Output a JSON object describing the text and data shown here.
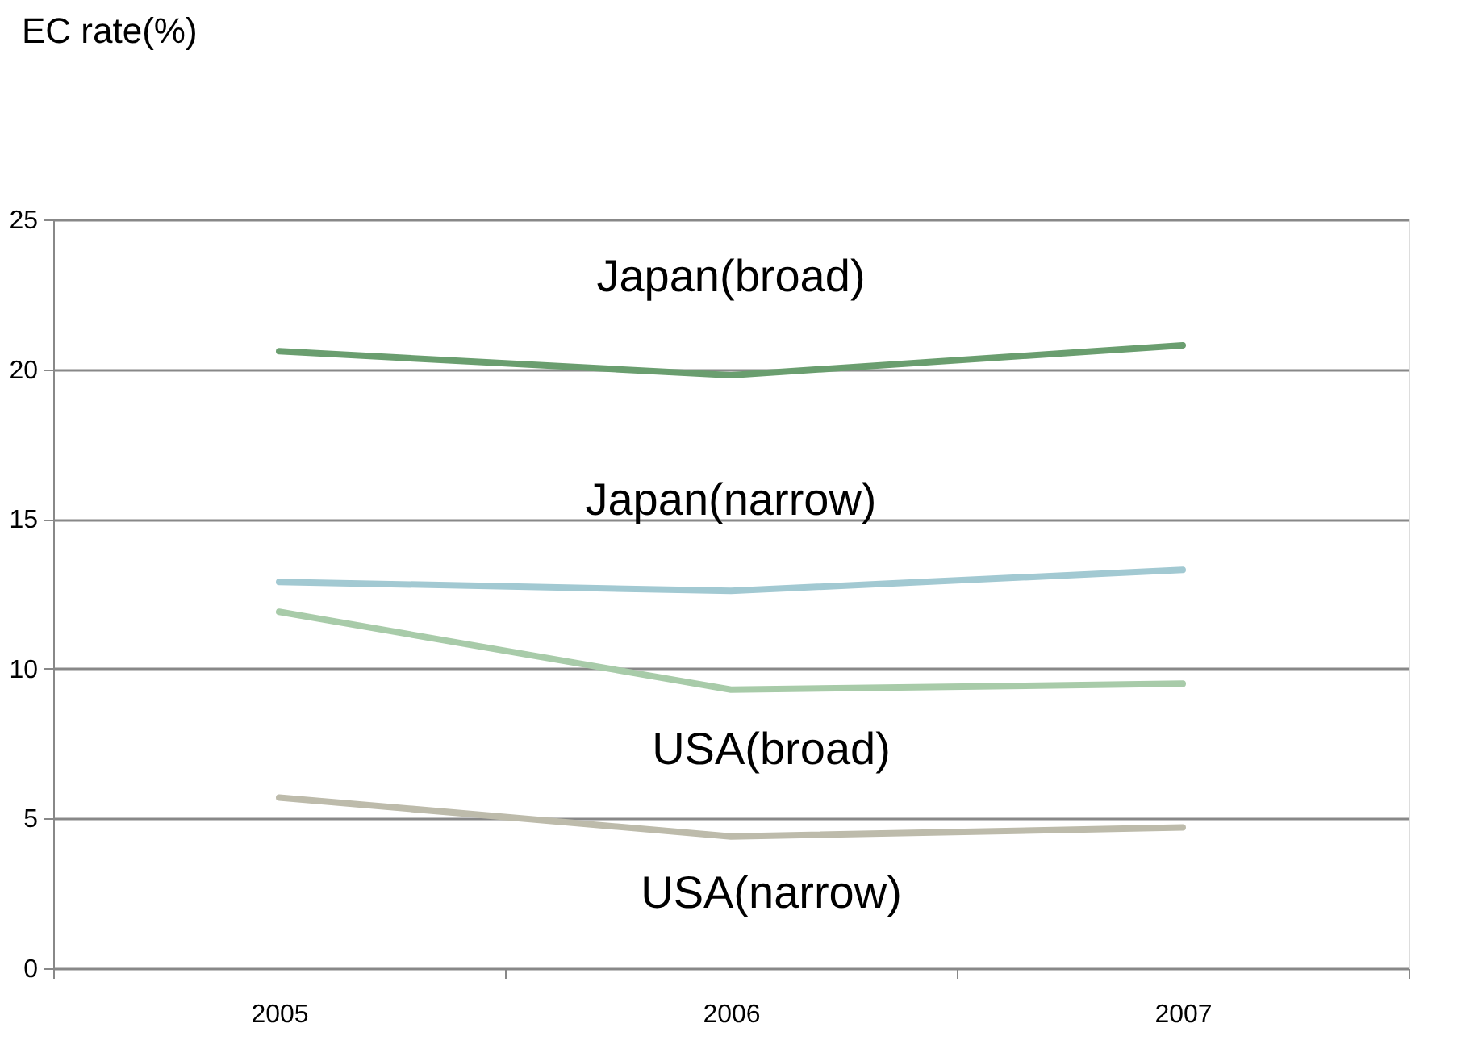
{
  "chart_data": {
    "type": "line",
    "ylabel": "EC rate(%)",
    "categories": [
      "2005",
      "2006",
      "2007"
    ],
    "series": [
      {
        "name": "Japan(broad)",
        "color": "#6a9e6f",
        "values": [
          20.6,
          19.8,
          20.8
        ]
      },
      {
        "name": "Japan(narrow)",
        "color": "#a2c9d2",
        "values": [
          12.9,
          12.6,
          13.3
        ]
      },
      {
        "name": "USA(broad)",
        "color": "#a8cba9",
        "values": [
          11.9,
          9.3,
          9.5
        ]
      },
      {
        "name": "USA(narrow)",
        "color": "#bdbbab",
        "values": [
          5.7,
          4.4,
          4.7
        ]
      }
    ],
    "ylim": [
      0,
      25
    ],
    "yticks": [
      0,
      5,
      10,
      15,
      20,
      25
    ],
    "grid": "y",
    "legend": false,
    "marker": "none",
    "line_style": "solid"
  }
}
